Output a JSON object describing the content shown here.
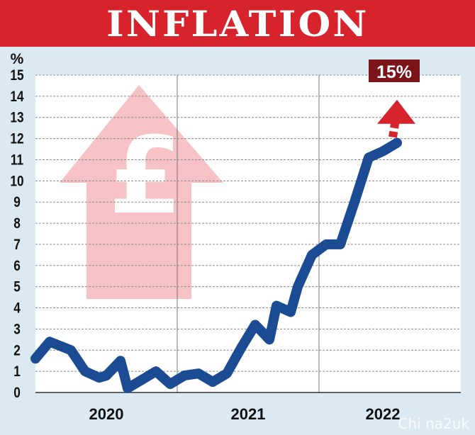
{
  "header": {
    "title": "INFLATION"
  },
  "watermark": "Chi na2uk",
  "chart_data": {
    "type": "line",
    "title": "INFLATION",
    "ylabel": "%",
    "ylim": [
      0,
      15
    ],
    "yticks": [
      0,
      1,
      2,
      3,
      4,
      5,
      6,
      7,
      8,
      9,
      10,
      11,
      12,
      13,
      14,
      15
    ],
    "year_labels": [
      "2020",
      "2021",
      "2022"
    ],
    "xlim": [
      0,
      30
    ],
    "grid": true,
    "series": [
      {
        "color": "#1a4b93",
        "x": [
          0,
          1,
          2.5,
          3.5,
          4.5,
          5,
          6,
          6.5,
          7.5,
          8.5,
          9.5,
          10.5,
          11.5,
          12.5,
          13.5,
          14.5,
          15.5,
          16.5,
          17,
          18,
          18.5,
          19.5,
          20.5,
          21.5,
          22.5,
          23.5,
          24.5,
          25.5
        ],
        "values": [
          1.6,
          2.4,
          2.0,
          1.0,
          0.7,
          0.8,
          1.5,
          0.2,
          0.6,
          1.0,
          0.4,
          0.8,
          0.9,
          0.5,
          0.9,
          2.1,
          3.2,
          2.5,
          4.1,
          3.8,
          5.0,
          6.5,
          7.0,
          7.0,
          9.0,
          11.1,
          11.4,
          11.8
        ]
      }
    ],
    "projection": {
      "label": "15%",
      "color": "#d7232c",
      "label_bg": "#7a1418"
    },
    "decoration": {
      "arrow_color": "#f4b7bb",
      "symbol": "£"
    }
  }
}
